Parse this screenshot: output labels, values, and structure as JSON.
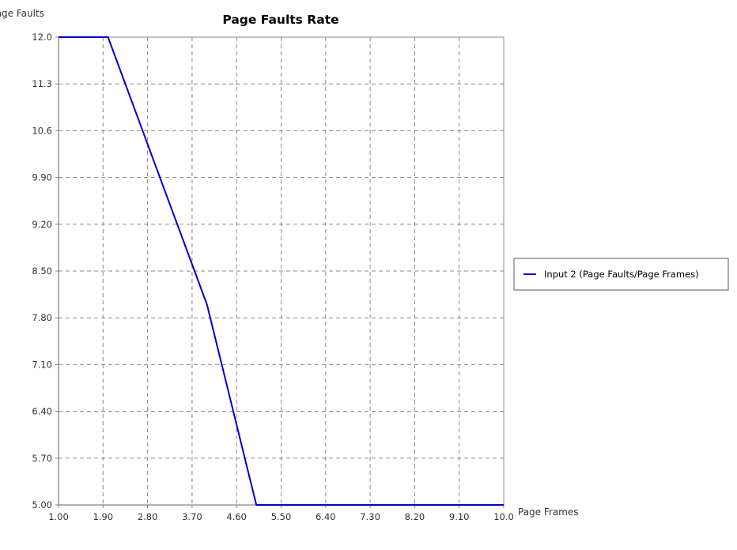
{
  "chart_data": {
    "type": "line",
    "title": "Page Faults Rate",
    "xlabel": "Page Frames",
    "ylabel": "Page Faults",
    "xlim": [
      1.0,
      10.0
    ],
    "ylim": [
      5.0,
      12.0
    ],
    "x_ticks": [
      "1.00",
      "1.90",
      "2.80",
      "3.70",
      "4.60",
      "5.50",
      "6.40",
      "7.30",
      "8.20",
      "9.10",
      "10.0"
    ],
    "x_tick_values": [
      1.0,
      1.9,
      2.8,
      3.7,
      4.6,
      5.5,
      6.4,
      7.3,
      8.2,
      9.1,
      10.0
    ],
    "y_ticks": [
      "5.00",
      "5.70",
      "6.40",
      "7.10",
      "7.80",
      "8.50",
      "9.20",
      "9.90",
      "10.6",
      "11.3",
      "12.0"
    ],
    "y_tick_values": [
      5.0,
      5.7,
      6.4,
      7.1,
      7.8,
      8.5,
      9.2,
      9.9,
      10.6,
      11.3,
      12.0
    ],
    "grid": true,
    "legend_position": "right",
    "series": [
      {
        "name": "Input 2 (Page Faults/Page Frames)",
        "color": "#0000cc",
        "x": [
          1,
          2,
          3,
          4,
          5,
          6,
          7,
          8,
          9,
          10
        ],
        "y": [
          12,
          12,
          10,
          8,
          5,
          5,
          5,
          5,
          5,
          5
        ]
      }
    ]
  }
}
